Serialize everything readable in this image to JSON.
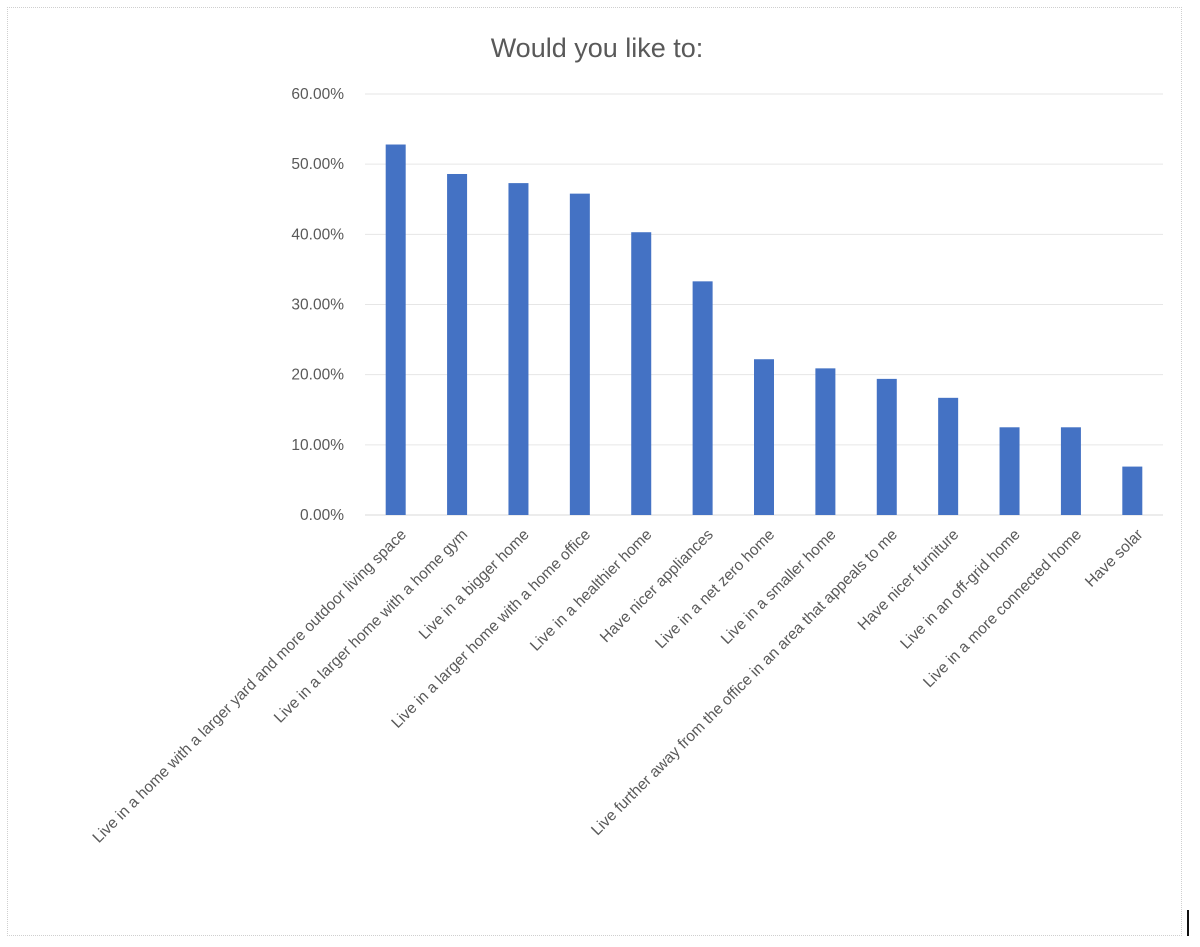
{
  "chart_data": {
    "type": "bar",
    "title": "Would you like to:",
    "xlabel": "",
    "ylabel": "",
    "ylim": [
      0,
      0.6
    ],
    "yticks": [
      "0.00%",
      "10.00%",
      "20.00%",
      "30.00%",
      "40.00%",
      "50.00%",
      "60.00%"
    ],
    "grid": true,
    "legend": "none",
    "bar_color": "#4472C4",
    "categories": [
      "Live in a home with a larger yard and more outdoor living space",
      "Live in a larger home with a home gym",
      "Live in a bigger home",
      "Live in a larger home with a home office",
      "Live in a healthier home",
      "Have nicer appliances",
      "Live in a net zero home",
      "Live in a smaller home",
      "Live further away from the office in an area that appeals to me",
      "Have nicer furniture",
      "Live in an off-grid home",
      "Live in a more connected home",
      "Have solar"
    ],
    "values": [
      0.528,
      0.486,
      0.473,
      0.458,
      0.403,
      0.333,
      0.222,
      0.209,
      0.194,
      0.167,
      0.125,
      0.125,
      0.069
    ]
  }
}
